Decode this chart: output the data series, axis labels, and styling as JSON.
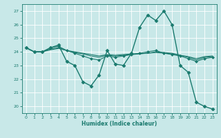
{
  "title": "",
  "xlabel": "Humidex (Indice chaleur)",
  "ylabel": "",
  "bg_color": "#c8e8e8",
  "grid_color": "#ffffff",
  "line_color": "#1a7a6e",
  "xlim": [
    -0.5,
    23.5
  ],
  "ylim": [
    19.5,
    27.5
  ],
  "xticks": [
    0,
    1,
    2,
    3,
    4,
    5,
    6,
    7,
    8,
    9,
    10,
    11,
    12,
    13,
    14,
    15,
    16,
    17,
    18,
    19,
    20,
    21,
    22,
    23
  ],
  "yticks": [
    20,
    21,
    22,
    23,
    24,
    25,
    26,
    27
  ],
  "lines": [
    {
      "x": [
        0,
        1,
        2,
        3,
        4,
        5,
        6,
        7,
        8,
        9,
        10,
        11,
        12,
        13,
        14,
        15,
        16,
        17,
        18,
        19,
        20,
        21,
        22,
        23
      ],
      "y": [
        24.3,
        24.0,
        24.0,
        24.3,
        24.5,
        23.3,
        23.0,
        21.8,
        21.5,
        22.3,
        24.1,
        23.1,
        23.0,
        23.9,
        25.8,
        26.7,
        26.3,
        27.0,
        26.0,
        23.0,
        22.5,
        20.3,
        20.0,
        19.8
      ],
      "marker": "D",
      "markersize": 2.5,
      "linewidth": 1.0
    },
    {
      "x": [
        0,
        1,
        2,
        3,
        4,
        5,
        6,
        7,
        8,
        9,
        10,
        11,
        12,
        13,
        14,
        15,
        16,
        17,
        18,
        19,
        20,
        21,
        22,
        23
      ],
      "y": [
        24.3,
        24.0,
        24.0,
        24.3,
        24.4,
        24.1,
        23.9,
        23.7,
        23.5,
        23.4,
        23.7,
        23.6,
        23.7,
        23.8,
        23.9,
        24.0,
        24.1,
        23.9,
        23.8,
        23.7,
        23.5,
        23.3,
        23.5,
        23.6
      ],
      "marker": "D",
      "markersize": 2.0,
      "linewidth": 0.8
    },
    {
      "x": [
        0,
        1,
        2,
        3,
        4,
        5,
        6,
        7,
        8,
        9,
        10,
        11,
        12,
        13,
        14,
        15,
        16,
        17,
        18,
        19,
        20,
        21,
        22,
        23
      ],
      "y": [
        24.3,
        24.0,
        24.0,
        24.2,
        24.3,
        24.1,
        23.95,
        23.85,
        23.7,
        23.6,
        23.75,
        23.7,
        23.75,
        23.8,
        23.85,
        23.9,
        24.0,
        23.95,
        23.9,
        23.75,
        23.6,
        23.4,
        23.6,
        23.65
      ],
      "marker": null,
      "markersize": 0,
      "linewidth": 0.8
    },
    {
      "x": [
        0,
        1,
        2,
        3,
        4,
        5,
        6,
        7,
        8,
        9,
        10,
        11,
        12,
        13,
        14,
        15,
        16,
        17,
        18,
        19,
        20,
        21,
        22,
        23
      ],
      "y": [
        24.3,
        24.0,
        24.0,
        24.15,
        24.25,
        24.1,
        24.0,
        23.9,
        23.8,
        23.7,
        23.8,
        23.75,
        23.8,
        23.85,
        23.87,
        23.9,
        23.95,
        23.9,
        23.85,
        23.75,
        23.65,
        23.5,
        23.65,
        23.7
      ],
      "marker": null,
      "markersize": 0,
      "linewidth": 0.8
    }
  ]
}
